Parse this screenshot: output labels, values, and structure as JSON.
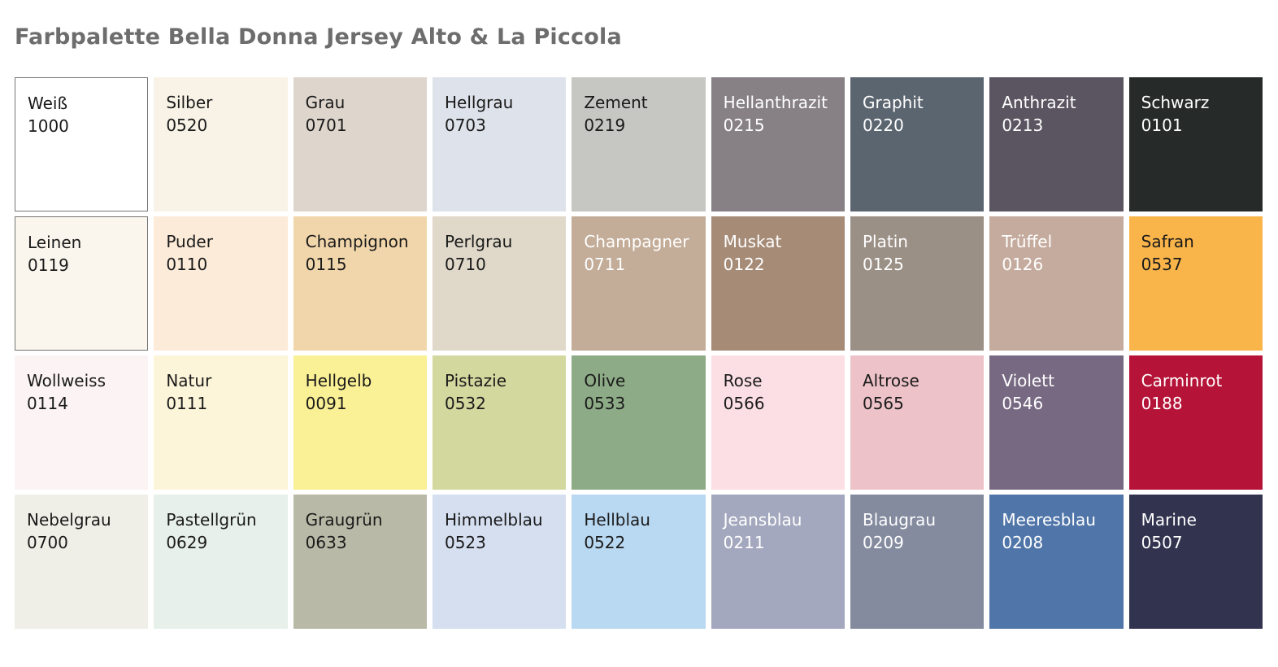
{
  "title": "Farbpalette Bella Donna Jersey Alto & La Piccola",
  "title_color": "#6d6d6d",
  "palette": {
    "label_color_dark": "#1a1a1a",
    "label_color_light": "#ffffff",
    "swatch_border_color": "#757575",
    "rows": [
      [
        {
          "name": "Weiß",
          "code": "1000",
          "color": "#ffffff",
          "text": "dark",
          "border": true
        },
        {
          "name": "Silber",
          "code": "0520",
          "color": "#f8f3e6",
          "text": "dark",
          "border": false
        },
        {
          "name": "Grau",
          "code": "0701",
          "color": "#ded6cc",
          "text": "dark",
          "border": false
        },
        {
          "name": "Hellgrau",
          "code": "0703",
          "color": "#dee2eb",
          "text": "dark",
          "border": false
        },
        {
          "name": "Zement",
          "code": "0219",
          "color": "#c6c6c2",
          "text": "dark",
          "border": false
        },
        {
          "name": "Hellanthrazit",
          "code": "0215",
          "color": "#878185",
          "text": "light",
          "border": false
        },
        {
          "name": "Graphit",
          "code": "0220",
          "color": "#5b6570",
          "text": "light",
          "border": false
        },
        {
          "name": "Anthrazit",
          "code": "0213",
          "color": "#5a5560",
          "text": "light",
          "border": false
        },
        {
          "name": "Schwarz",
          "code": "0101",
          "color": "#262b29",
          "text": "light",
          "border": false
        }
      ],
      [
        {
          "name": "Leinen",
          "code": "0119",
          "color": "#faf6ed",
          "text": "dark",
          "border": true
        },
        {
          "name": "Puder",
          "code": "0110",
          "color": "#fcebd8",
          "text": "dark",
          "border": false
        },
        {
          "name": "Champignon",
          "code": "0115",
          "color": "#f1d6ab",
          "text": "dark",
          "border": false
        },
        {
          "name": "Perlgrau",
          "code": "0710",
          "color": "#e0d9ca",
          "text": "dark",
          "border": false
        },
        {
          "name": "Champagner",
          "code": "0711",
          "color": "#c3ad99",
          "text": "light",
          "border": false
        },
        {
          "name": "Muskat",
          "code": "0122",
          "color": "#a68b76",
          "text": "light",
          "border": false
        },
        {
          "name": "Platin",
          "code": "0125",
          "color": "#9b9086",
          "text": "light",
          "border": false
        },
        {
          "name": "Trüffel",
          "code": "0126",
          "color": "#c5ab9e",
          "text": "light",
          "border": false
        },
        {
          "name": "Safran",
          "code": "0537",
          "color": "#f9b54a",
          "text": "dark",
          "border": false
        }
      ],
      [
        {
          "name": "Wollweiss",
          "code": "0114",
          "color": "#fbf3f4",
          "text": "dark",
          "border": false
        },
        {
          "name": "Natur",
          "code": "0111",
          "color": "#fdf5d9",
          "text": "dark",
          "border": false
        },
        {
          "name": "Hellgelb",
          "code": "0091",
          "color": "#faf095",
          "text": "dark",
          "border": false
        },
        {
          "name": "Pistazie",
          "code": "0532",
          "color": "#d3d89f",
          "text": "dark",
          "border": false
        },
        {
          "name": "Olive",
          "code": "0533",
          "color": "#8dab86",
          "text": "dark",
          "border": false
        },
        {
          "name": "Rose",
          "code": "0566",
          "color": "#fcdfe5",
          "text": "dark",
          "border": false
        },
        {
          "name": "Altrose",
          "code": "0565",
          "color": "#edc3c9",
          "text": "dark",
          "border": false
        },
        {
          "name": "Violett",
          "code": "0546",
          "color": "#776982",
          "text": "light",
          "border": false
        },
        {
          "name": "Carminrot",
          "code": "0188",
          "color": "#b51337",
          "text": "light",
          "border": false
        }
      ],
      [
        {
          "name": "Nebelgrau",
          "code": "0700",
          "color": "#efeee7",
          "text": "dark",
          "border": false
        },
        {
          "name": "Pastellgrün",
          "code": "0629",
          "color": "#e7f0ea",
          "text": "dark",
          "border": false
        },
        {
          "name": "Graugrün",
          "code": "0633",
          "color": "#b8b9a6",
          "text": "dark",
          "border": false
        },
        {
          "name": "Himmelblau",
          "code": "0523",
          "color": "#d5dff0",
          "text": "dark",
          "border": false
        },
        {
          "name": "Hellblau",
          "code": "0522",
          "color": "#b9d8f1",
          "text": "dark",
          "border": false
        },
        {
          "name": "Jeansblau",
          "code": "0211",
          "color": "#a4a8be",
          "text": "light",
          "border": false
        },
        {
          "name": "Blaugrau",
          "code": "0209",
          "color": "#848b9f",
          "text": "light",
          "border": false
        },
        {
          "name": "Meeresblau",
          "code": "0208",
          "color": "#5075a9",
          "text": "light",
          "border": false
        },
        {
          "name": "Marine",
          "code": "0507",
          "color": "#32344f",
          "text": "light",
          "border": false
        }
      ]
    ]
  }
}
